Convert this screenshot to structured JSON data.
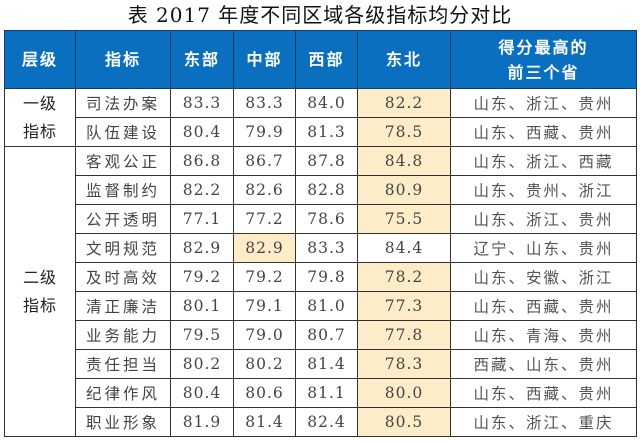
{
  "title": "表  2017 年度不同区域各级指标均分对比",
  "colors": {
    "header_bg": "#0b6fc0",
    "highlight": "#fdecc8"
  },
  "headers": [
    "层级",
    "指标",
    "东部",
    "中部",
    "西部",
    "东北",
    "得分最高的",
    "前三个省"
  ],
  "groups": [
    {
      "level_line1": "一级",
      "level_line2": "指标"
    },
    {
      "level_line1": "二级",
      "level_line2": "指标"
    }
  ],
  "rows": [
    {
      "indicator": "司法办案",
      "east": "83.3",
      "central": "83.3",
      "west": "84.0",
      "northeast": "82.2",
      "top3": "山东、浙江、贵州"
    },
    {
      "indicator": "队伍建设",
      "east": "80.4",
      "central": "79.9",
      "west": "81.3",
      "northeast": "78.5",
      "top3": "山东、西藏、贵州"
    },
    {
      "indicator": "客观公正",
      "east": "86.8",
      "central": "86.7",
      "west": "87.8",
      "northeast": "84.8",
      "top3": "山东、浙江、西藏"
    },
    {
      "indicator": "监督制约",
      "east": "82.2",
      "central": "82.6",
      "west": "82.8",
      "northeast": "80.9",
      "top3": "山东、贵州、浙江"
    },
    {
      "indicator": "公开透明",
      "east": "77.1",
      "central": "77.2",
      "west": "78.6",
      "northeast": "75.5",
      "top3": "山东、浙江、贵州"
    },
    {
      "indicator": "文明规范",
      "east": "82.9",
      "central": "82.9",
      "west": "83.3",
      "northeast": "84.4",
      "top3": "辽宁、山东、贵州"
    },
    {
      "indicator": "及时高效",
      "east": "79.2",
      "central": "79.2",
      "west": "79.8",
      "northeast": "78.2",
      "top3": "山东、安徽、浙江"
    },
    {
      "indicator": "清正廉洁",
      "east": "80.1",
      "central": "79.1",
      "west": "81.0",
      "northeast": "77.3",
      "top3": "山东、西藏、贵州"
    },
    {
      "indicator": "业务能力",
      "east": "79.5",
      "central": "79.0",
      "west": "80.7",
      "northeast": "77.8",
      "top3": "山东、青海、贵州"
    },
    {
      "indicator": "责任担当",
      "east": "80.2",
      "central": "80.2",
      "west": "81.4",
      "northeast": "78.3",
      "top3": "西藏、山东、贵州"
    },
    {
      "indicator": "纪律作风",
      "east": "80.4",
      "central": "80.6",
      "west": "81.1",
      "northeast": "80.0",
      "top3": "山东、西藏、贵州"
    },
    {
      "indicator": "职业形象",
      "east": "81.9",
      "central": "81.4",
      "west": "82.4",
      "northeast": "80.5",
      "top3": "山东、浙江、重庆"
    }
  ]
}
